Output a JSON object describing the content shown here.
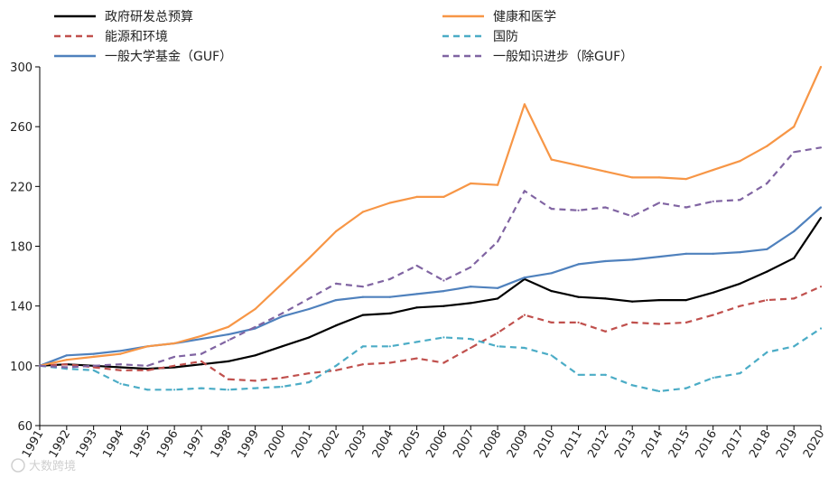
{
  "chart_data": {
    "type": "line",
    "title": "",
    "xlabel": "",
    "ylabel": "",
    "categories": [
      "1991",
      "1992",
      "1993",
      "1994",
      "1995",
      "1996",
      "1997",
      "1998",
      "1999",
      "2000",
      "2001",
      "2002",
      "2003",
      "2004",
      "2005",
      "2006",
      "2007",
      "2008",
      "2009",
      "2010",
      "2011",
      "2012",
      "2013",
      "2014",
      "2015",
      "2016",
      "2017",
      "2018",
      "2019",
      "2020"
    ],
    "ylim": [
      60,
      300
    ],
    "yticks": [
      60,
      100,
      140,
      180,
      220,
      260,
      300
    ],
    "grid": false,
    "legend_position": "top",
    "series": [
      {
        "name": "政府研发总预算",
        "color": "#000000",
        "dash": "solid",
        "values": [
          100,
          101,
          100,
          99,
          98,
          99,
          101,
          103,
          107,
          113,
          119,
          127,
          134,
          135,
          139,
          140,
          142,
          145,
          158,
          150,
          146,
          145,
          143,
          144,
          144,
          149,
          155,
          163,
          172,
          199
        ]
      },
      {
        "name": "能源和环境",
        "color": "#c0504d",
        "dash": "dashed",
        "values": [
          100,
          101,
          99,
          97,
          97,
          100,
          103,
          91,
          90,
          92,
          95,
          97,
          101,
          102,
          105,
          102,
          112,
          122,
          134,
          129,
          129,
          123,
          129,
          128,
          129,
          134,
          140,
          144,
          145,
          153
        ]
      },
      {
        "name": "一般大学基金（GUF）",
        "color": "#4f81bd",
        "dash": "solid",
        "values": [
          100,
          107,
          108,
          110,
          113,
          115,
          118,
          121,
          125,
          133,
          138,
          144,
          146,
          146,
          148,
          150,
          153,
          152,
          159,
          162,
          168,
          170,
          171,
          173,
          175,
          175,
          176,
          178,
          190,
          206
        ]
      },
      {
        "name": "健康和医学",
        "color": "#f79646",
        "dash": "solid",
        "values": [
          100,
          104,
          106,
          108,
          113,
          115,
          120,
          126,
          138,
          155,
          172,
          190,
          203,
          209,
          213,
          213,
          222,
          221,
          275,
          238,
          234,
          230,
          226,
          226,
          225,
          231,
          237,
          247,
          260,
          300
        ]
      },
      {
        "name": "国防",
        "color": "#4bacc6",
        "dash": "dashed",
        "values": [
          100,
          98,
          97,
          88,
          84,
          84,
          85,
          84,
          85,
          86,
          89,
          100,
          113,
          113,
          116,
          119,
          118,
          113,
          112,
          107,
          94,
          94,
          87,
          83,
          85,
          92,
          95,
          109,
          113,
          125
        ]
      },
      {
        "name": "一般知识进步（除GUF）",
        "color": "#8064a2",
        "dash": "dashed",
        "values": [
          100,
          99,
          100,
          101,
          100,
          106,
          108,
          117,
          126,
          135,
          145,
          155,
          153,
          158,
          167,
          157,
          166,
          183,
          217,
          205,
          204,
          206,
          200,
          209,
          206,
          210,
          211,
          222,
          243,
          246
        ]
      }
    ]
  },
  "watermark": "大数跨境",
  "colors": {
    "axis": "#000000",
    "text": "#222222"
  }
}
